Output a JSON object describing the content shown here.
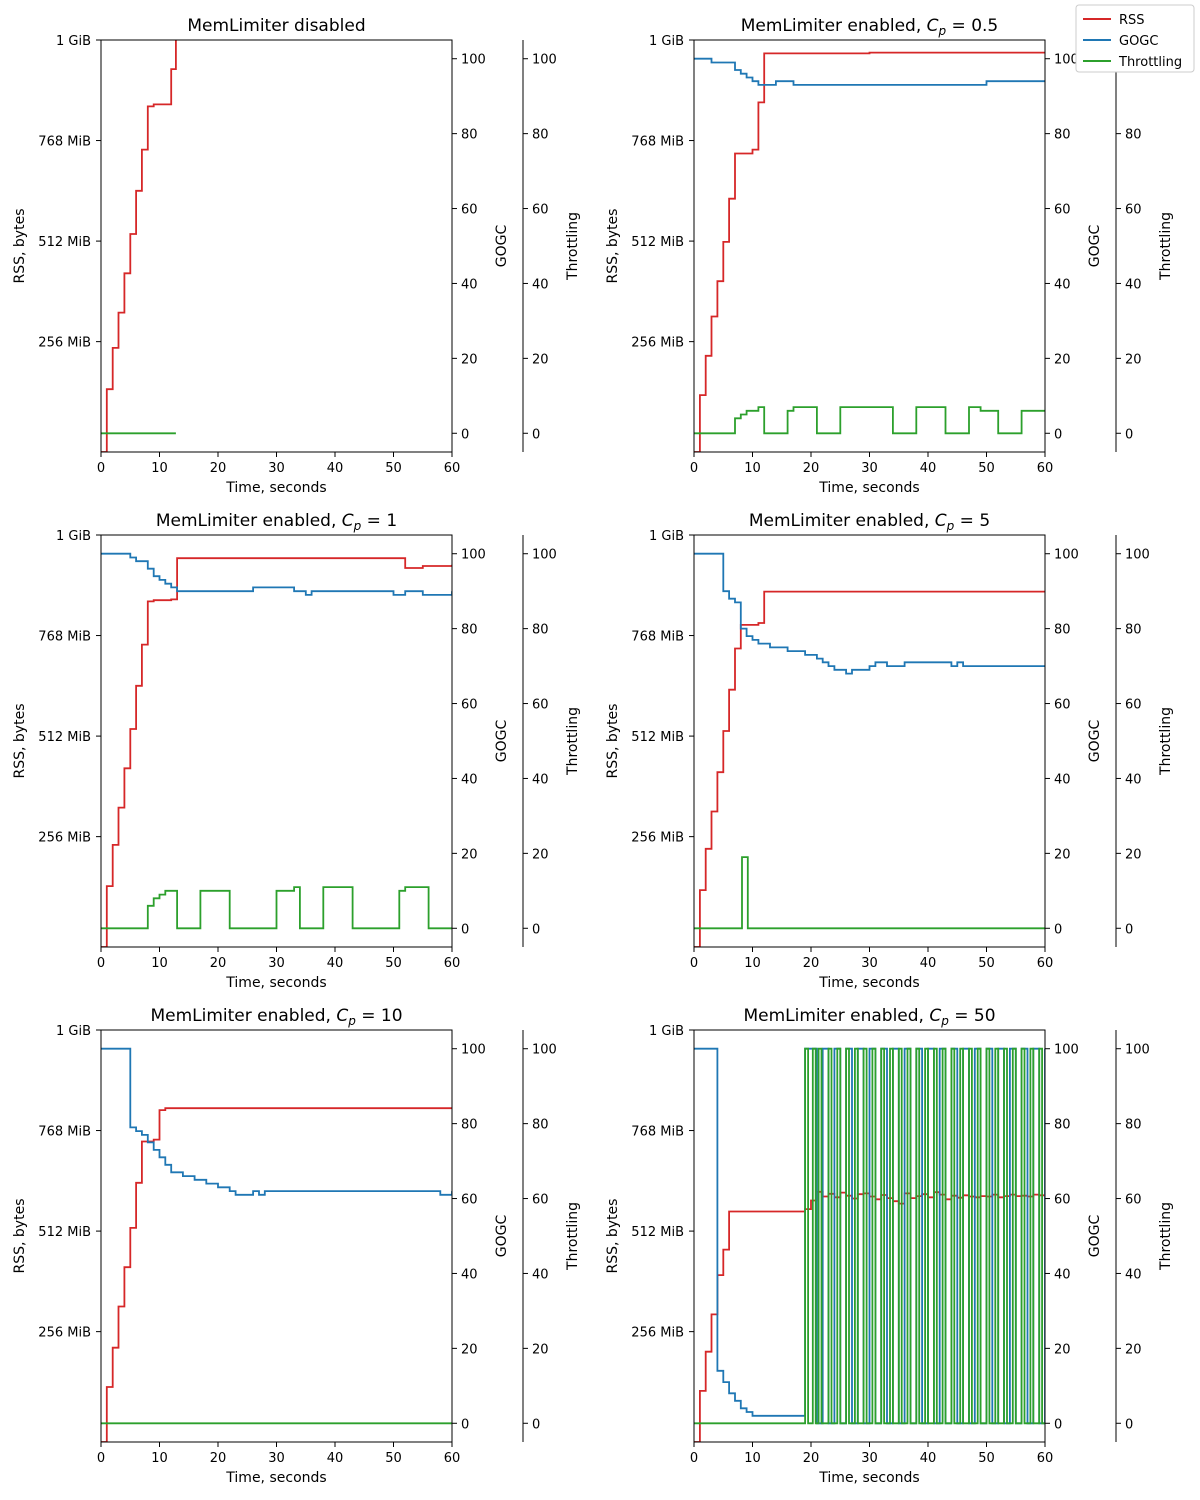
{
  "legend": {
    "placement": "top-right",
    "entries": [
      {
        "name": "RSS",
        "color": "#d62728"
      },
      {
        "name": "GOGC",
        "color": "#1f77b4"
      },
      {
        "name": "Throttling",
        "color": "#2ca02c"
      }
    ]
  },
  "chart_data": [
    {
      "type": "line",
      "title": "MemLimiter disabled",
      "title_sub": "",
      "title_suffix": "",
      "xlabel": "Time, seconds",
      "ylabel": "RSS, bytes",
      "y2label": "GOGC",
      "y3label": "Throttling",
      "xlim": [
        0,
        60
      ],
      "xticks": [
        0,
        10,
        20,
        30,
        40,
        50,
        60
      ],
      "rss_ticks": [
        256,
        512,
        768,
        1024
      ],
      "rss_tick_labels": [
        "256 MiB",
        "512 MiB",
        "768 MiB",
        "1 GiB"
      ],
      "rss_ylim_mib": [
        -25,
        1024
      ],
      "pct_ylim": [
        -5,
        105
      ],
      "pct_ticks": [
        0,
        20,
        40,
        60,
        80,
        100
      ],
      "series": [
        {
          "name": "RSS",
          "unit": "MiB",
          "color": "#d62728",
          "x": [
            0,
            1,
            2,
            3,
            4,
            5,
            6,
            7,
            8,
            9,
            12,
            12.8
          ],
          "y": [
            -25,
            135,
            240,
            330,
            430,
            530,
            640,
            745,
            855,
            860,
            950,
            1024
          ]
        },
        {
          "name": "Throttling",
          "unit": "pct",
          "color": "#2ca02c",
          "x": [
            0,
            12.8
          ],
          "y": [
            0,
            0
          ]
        }
      ]
    },
    {
      "type": "line",
      "title": "MemLimiter enabled, ",
      "title_sub": "p",
      "title_suffix": " = 0.5",
      "xlabel": "Time, seconds",
      "ylabel": "RSS, bytes",
      "y2label": "GOGC",
      "y3label": "Throttling",
      "xlim": [
        0,
        60
      ],
      "xticks": [
        0,
        10,
        20,
        30,
        40,
        50,
        60
      ],
      "rss_ticks": [
        256,
        512,
        768,
        1024
      ],
      "rss_tick_labels": [
        "256 MiB",
        "512 MiB",
        "768 MiB",
        "1 GiB"
      ],
      "rss_ylim_mib": [
        -25,
        1024
      ],
      "pct_ylim": [
        -5,
        105
      ],
      "pct_ticks": [
        0,
        20,
        40,
        60,
        80,
        100
      ],
      "series": [
        {
          "name": "RSS",
          "unit": "MiB",
          "color": "#d62728",
          "x": [
            0,
            1,
            2,
            3,
            4,
            5,
            6,
            7,
            10,
            11,
            12,
            30,
            60
          ],
          "y": [
            -25,
            120,
            220,
            320,
            410,
            510,
            620,
            735,
            745,
            865,
            990,
            992,
            992
          ]
        },
        {
          "name": "GOGC",
          "unit": "pct",
          "color": "#1f77b4",
          "x": [
            0,
            3,
            7,
            8,
            9,
            10,
            11,
            12,
            14,
            17,
            34,
            47,
            50,
            60
          ],
          "y": [
            100,
            99,
            97,
            96,
            95,
            94,
            93,
            93,
            94,
            93,
            93,
            93,
            94,
            94
          ]
        },
        {
          "name": "Throttling",
          "unit": "pct",
          "color": "#2ca02c",
          "x": [
            0,
            7,
            8,
            9,
            10,
            11,
            12,
            16,
            17,
            21,
            25,
            34,
            38,
            43,
            47,
            49,
            52,
            56,
            60
          ],
          "y": [
            0,
            4,
            5,
            6,
            6,
            7,
            0,
            6,
            7,
            0,
            7,
            0,
            7,
            0,
            7,
            6,
            0,
            6,
            6
          ]
        }
      ]
    },
    {
      "type": "line",
      "title": "MemLimiter enabled, ",
      "title_sub": "p",
      "title_suffix": " = 1",
      "xlabel": "Time, seconds",
      "ylabel": "RSS, bytes",
      "y2label": "GOGC",
      "y3label": "Throttling",
      "xlim": [
        0,
        60
      ],
      "xticks": [
        0,
        10,
        20,
        30,
        40,
        50,
        60
      ],
      "rss_ticks": [
        256,
        512,
        768,
        1024
      ],
      "rss_tick_labels": [
        "256 MiB",
        "512 MiB",
        "768 MiB",
        "1 GiB"
      ],
      "rss_ylim_mib": [
        -25,
        1024
      ],
      "pct_ylim": [
        -5,
        105
      ],
      "pct_ticks": [
        0,
        20,
        40,
        60,
        80,
        100
      ],
      "series": [
        {
          "name": "RSS",
          "unit": "MiB",
          "color": "#d62728",
          "x": [
            0,
            1,
            2,
            3,
            4,
            5,
            6,
            7,
            8,
            9,
            12,
            13,
            43,
            52,
            55,
            60
          ],
          "y": [
            -25,
            130,
            235,
            330,
            430,
            530,
            640,
            745,
            855,
            858,
            860,
            965,
            965,
            940,
            945,
            948
          ]
        },
        {
          "name": "GOGC",
          "unit": "pct",
          "color": "#1f77b4",
          "x": [
            0,
            5,
            6,
            8,
            9,
            10,
            11,
            12,
            13,
            24,
            26,
            33,
            35,
            36,
            50,
            52,
            55,
            60
          ],
          "y": [
            100,
            99,
            98,
            96,
            94,
            93,
            92,
            91,
            90,
            90,
            91,
            90,
            89,
            90,
            89,
            90,
            89,
            90
          ]
        },
        {
          "name": "Throttling",
          "unit": "pct",
          "color": "#2ca02c",
          "x": [
            0,
            8,
            9,
            10,
            11,
            13,
            17,
            22,
            30,
            33,
            34,
            38,
            43,
            51,
            52,
            56,
            60
          ],
          "y": [
            0,
            6,
            8,
            9,
            10,
            0,
            10,
            0,
            10,
            11,
            0,
            11,
            0,
            10,
            11,
            0,
            0
          ]
        }
      ]
    },
    {
      "type": "line",
      "title": "MemLimiter enabled, ",
      "title_sub": "p",
      "title_suffix": " = 5",
      "xlabel": "Time, seconds",
      "ylabel": "RSS, bytes",
      "y2label": "GOGC",
      "y3label": "Throttling",
      "xlim": [
        0,
        60
      ],
      "xticks": [
        0,
        10,
        20,
        30,
        40,
        50,
        60
      ],
      "rss_ticks": [
        256,
        512,
        768,
        1024
      ],
      "rss_tick_labels": [
        "256 MiB",
        "512 MiB",
        "768 MiB",
        "1 GiB"
      ],
      "rss_ylim_mib": [
        -25,
        1024
      ],
      "pct_ylim": [
        -5,
        105
      ],
      "pct_ticks": [
        0,
        20,
        40,
        60,
        80,
        100
      ],
      "series": [
        {
          "name": "RSS",
          "unit": "MiB",
          "color": "#d62728",
          "x": [
            0,
            1,
            2,
            3,
            4,
            5,
            6,
            7,
            8,
            11,
            12,
            60
          ],
          "y": [
            -25,
            120,
            225,
            320,
            420,
            525,
            630,
            735,
            795,
            800,
            880,
            880
          ]
        },
        {
          "name": "GOGC",
          "unit": "pct",
          "color": "#1f77b4",
          "x": [
            0,
            5,
            6,
            7,
            8,
            9,
            10,
            11,
            13,
            16,
            19,
            21,
            22,
            23,
            24,
            26,
            27,
            30,
            31,
            33,
            36,
            37,
            44,
            45,
            46,
            50,
            60
          ],
          "y": [
            100,
            90,
            88,
            87,
            80,
            78,
            77,
            76,
            75,
            74,
            73,
            72,
            71,
            70,
            69,
            68,
            69,
            70,
            71,
            70,
            71,
            71,
            70,
            71,
            70,
            70,
            70
          ]
        },
        {
          "name": "Throttling",
          "unit": "pct",
          "color": "#2ca02c",
          "x": [
            0,
            8.2,
            9.2,
            60
          ],
          "y": [
            0,
            19,
            0,
            0
          ]
        }
      ]
    },
    {
      "type": "line",
      "title": "MemLimiter enabled, ",
      "title_sub": "p",
      "title_suffix": " = 10",
      "xlabel": "Time, seconds",
      "ylabel": "RSS, bytes",
      "y2label": "GOGC",
      "y3label": "Throttling",
      "xlim": [
        0,
        60
      ],
      "xticks": [
        0,
        10,
        20,
        30,
        40,
        50,
        60
      ],
      "rss_ticks": [
        256,
        512,
        768,
        1024
      ],
      "rss_tick_labels": [
        "256 MiB",
        "512 MiB",
        "768 MiB",
        "1 GiB"
      ],
      "rss_ylim_mib": [
        -25,
        1024
      ],
      "pct_ylim": [
        -5,
        105
      ],
      "pct_ticks": [
        0,
        20,
        40,
        60,
        80,
        100
      ],
      "series": [
        {
          "name": "RSS",
          "unit": "MiB",
          "color": "#d62728",
          "x": [
            0,
            1,
            2,
            3,
            4,
            5,
            6,
            7,
            9,
            10,
            11,
            60
          ],
          "y": [
            -25,
            115,
            215,
            320,
            420,
            520,
            635,
            740,
            745,
            820,
            825,
            825
          ]
        },
        {
          "name": "GOGC",
          "unit": "pct",
          "color": "#1f77b4",
          "x": [
            0,
            5,
            6,
            7,
            8,
            9,
            10,
            11,
            12,
            14,
            16,
            18,
            20,
            22,
            23,
            26,
            27,
            28,
            32,
            36,
            45,
            46,
            49,
            57,
            58,
            60
          ],
          "y": [
            100,
            79,
            78,
            77,
            75,
            73,
            71,
            69,
            67,
            66,
            65,
            64,
            63,
            62,
            61,
            62,
            61,
            62,
            62,
            62,
            62,
            62,
            62,
            62,
            61,
            62
          ]
        },
        {
          "name": "Throttling",
          "unit": "pct",
          "color": "#2ca02c",
          "x": [
            0,
            60
          ],
          "y": [
            0,
            0
          ]
        }
      ]
    },
    {
      "type": "line",
      "title": "MemLimiter enabled, ",
      "title_sub": "p",
      "title_suffix": " = 50",
      "xlabel": "Time, seconds",
      "ylabel": "RSS, bytes",
      "y2label": "GOGC",
      "y3label": "Throttling",
      "xlim": [
        0,
        60
      ],
      "xticks": [
        0,
        10,
        20,
        30,
        40,
        50,
        60
      ],
      "rss_ticks": [
        256,
        512,
        768,
        1024
      ],
      "rss_tick_labels": [
        "256 MiB",
        "512 MiB",
        "768 MiB",
        "1 GiB"
      ],
      "rss_ylim_mib": [
        -25,
        1024
      ],
      "pct_ylim": [
        -5,
        105
      ],
      "pct_ticks": [
        0,
        20,
        40,
        60,
        80,
        100
      ],
      "series": [
        {
          "name": "RSS",
          "unit": "MiB",
          "color": "#d62728",
          "x": [
            0,
            1,
            2,
            3,
            4,
            5,
            6,
            19,
            20,
            21,
            22,
            23,
            24,
            25,
            26,
            27,
            28,
            29,
            30,
            31,
            32,
            33,
            34,
            35,
            36,
            37,
            38,
            39,
            40,
            41,
            42,
            43,
            44,
            45,
            46,
            47,
            48,
            49,
            50,
            51,
            52,
            53,
            54,
            55,
            56,
            57,
            58,
            59,
            60
          ],
          "y": [
            -25,
            105,
            205,
            300,
            400,
            465,
            562,
            568,
            590,
            612,
            600,
            607,
            598,
            610,
            602,
            595,
            606,
            608,
            600,
            593,
            604,
            596,
            588,
            582,
            608,
            596,
            601,
            606,
            598,
            611,
            605,
            593,
            602,
            597,
            603,
            600,
            598,
            601,
            600,
            605,
            598,
            601,
            605,
            601,
            602,
            600,
            605,
            603,
            603
          ]
        },
        {
          "name": "GOGC",
          "unit": "pct",
          "color": "#1f77b4",
          "x": [
            0,
            4,
            5,
            6,
            7,
            8,
            9,
            10,
            11,
            18,
            19,
            20,
            21,
            22,
            23,
            24,
            25,
            26,
            27,
            28,
            29,
            30,
            31,
            32,
            33,
            34,
            35,
            36,
            37,
            38,
            39,
            40,
            41,
            42,
            43,
            44,
            45,
            46,
            47,
            48,
            49,
            50,
            51,
            52,
            53,
            54,
            55,
            56,
            57,
            58,
            59,
            60
          ],
          "y": [
            100,
            14,
            11,
            8,
            6,
            4,
            3,
            2,
            2,
            2,
            100,
            100,
            0,
            100,
            0,
            100,
            0,
            100,
            0,
            100,
            0,
            100,
            0,
            100,
            0,
            100,
            0,
            100,
            0,
            100,
            0,
            100,
            0,
            100,
            0,
            100,
            0,
            100,
            0,
            100,
            0,
            100,
            0,
            100,
            0,
            100,
            0,
            100,
            0,
            100,
            0,
            100
          ]
        },
        {
          "name": "Throttling",
          "unit": "pct",
          "color": "#2ca02c",
          "x": [
            0,
            19,
            19.5,
            20.3,
            20.8,
            21.3,
            21.8,
            23,
            23.5,
            24.5,
            25,
            26,
            26.5,
            27.5,
            28,
            29,
            29.5,
            30.5,
            31,
            32,
            32.5,
            33.5,
            34,
            35,
            35.5,
            36.5,
            37,
            38,
            38.5,
            39.5,
            40,
            41,
            41.5,
            42.5,
            43,
            44,
            44.5,
            45.5,
            46,
            47,
            47.5,
            48.5,
            49,
            50,
            50.5,
            51.5,
            52,
            53,
            53.5,
            54.5,
            55,
            56,
            56.5,
            57.5,
            58,
            59,
            59.5,
            60
          ],
          "y": [
            0,
            100,
            0,
            100,
            0,
            100,
            0,
            100,
            0,
            100,
            0,
            100,
            0,
            100,
            0,
            100,
            0,
            100,
            0,
            100,
            0,
            100,
            0,
            100,
            0,
            100,
            0,
            100,
            0,
            100,
            0,
            100,
            0,
            100,
            0,
            100,
            0,
            100,
            0,
            100,
            0,
            100,
            0,
            100,
            0,
            100,
            0,
            100,
            0,
            100,
            0,
            100,
            0,
            100,
            0,
            100,
            0,
            0
          ]
        }
      ]
    }
  ]
}
